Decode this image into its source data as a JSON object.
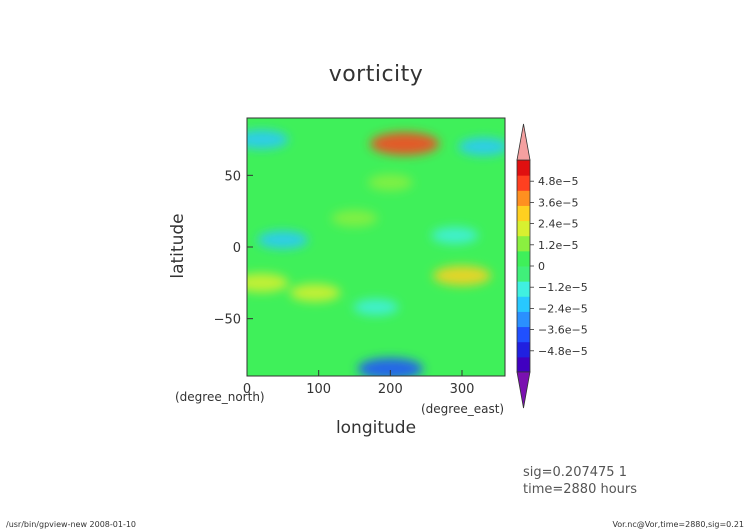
{
  "chart_data": {
    "type": "heatmap",
    "title": "vorticity",
    "xlabel": "longitude",
    "ylabel": "latitude",
    "x_unit": "(degree_east)",
    "y_unit": "(degree_north)",
    "xlim": [
      0,
      360
    ],
    "ylim": [
      -90,
      90
    ],
    "x_ticks": [
      "0",
      "100",
      "200",
      "300"
    ],
    "x_tick_values": [
      0,
      100,
      200,
      300
    ],
    "y_ticks": [
      "50",
      "0",
      "−50"
    ],
    "y_tick_values": [
      50,
      0,
      -50
    ],
    "colorbar": {
      "min": -6e-05,
      "max": 6e-05,
      "tick_labels": [
        "4.8e−5",
        "3.6e−5",
        "2.4e−5",
        "1.2e−5",
        "0",
        "−1.2e−5",
        "−2.4e−5",
        "−3.6e−5",
        "−4.8e−5"
      ],
      "tick_values": [
        4.8e-05,
        3.6e-05,
        2.4e-05,
        1.2e-05,
        0,
        -1.2e-05,
        -2.4e-05,
        -3.6e-05,
        -4.8e-05
      ],
      "extend": "both",
      "over_color": "#f4a0a0",
      "under_color": "#7a10b0"
    },
    "features": [
      {
        "lon": 220,
        "lat": 72,
        "value": 4.5e-05
      },
      {
        "lon": 300,
        "lat": -20,
        "value": 3e-05
      },
      {
        "lon": 95,
        "lat": -32,
        "value": 2e-05
      },
      {
        "lon": 20,
        "lat": -25,
        "value": 2.5e-05
      },
      {
        "lon": 20,
        "lat": 75,
        "value": -2.5e-05
      },
      {
        "lon": 330,
        "lat": 70,
        "value": -2e-05
      },
      {
        "lon": 50,
        "lat": 5,
        "value": -2e-05
      },
      {
        "lon": 290,
        "lat": 8,
        "value": -1.5e-05
      },
      {
        "lon": 200,
        "lat": 45,
        "value": 1.2e-05
      },
      {
        "lon": 150,
        "lat": 20,
        "value": 1.4e-05
      },
      {
        "lon": 180,
        "lat": -42,
        "value": -1.2e-05
      },
      {
        "lon": 200,
        "lat": -85,
        "value": -4e-05
      }
    ],
    "info_lines": [
      "sig=0.207475   1",
      "time=2880   hours"
    ]
  },
  "footer": {
    "left": "/usr/bin/gpview-new   2008-01-10",
    "right": "Vor.nc@Vor,time=2880,sig=0.21"
  }
}
